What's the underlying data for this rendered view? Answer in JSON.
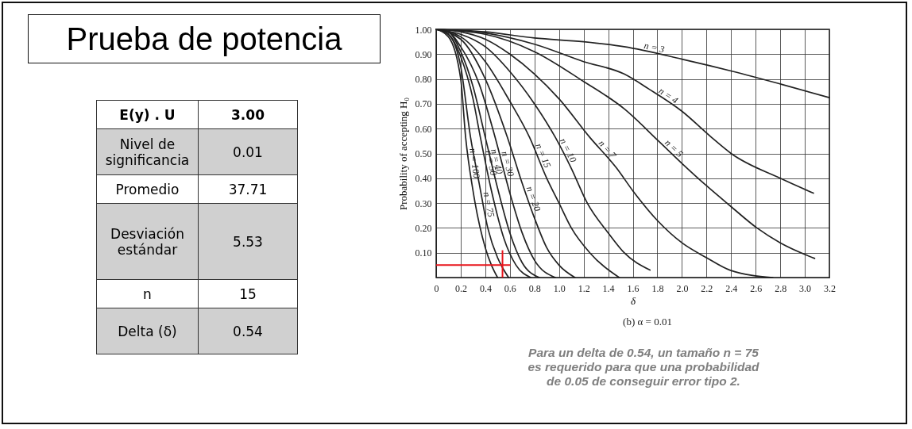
{
  "chart_data": [
    {
      "type": "other",
      "title": "Prueba de potencia",
      "categories": [
        "E(y) . U",
        "Nivel de significancia",
        "Promedio",
        "Desviación estándar",
        "n",
        "Delta (δ)"
      ],
      "value_labels": [
        "3.00",
        "0.01",
        "37.71",
        "5.53",
        "15",
        "0.54"
      ]
    },
    {
      "type": "line",
      "xlabel": "δ",
      "ylabel": "Probability of accepting H₀",
      "annotations": [
        "(b) α = 0.01",
        "Para un delta de 0.54, un tamaño n = 75 es requerido para que una probabilidad de 0.05 de conseguir error tipo 2."
      ],
      "xlim": [
        0,
        3.2
      ],
      "ylim": [
        0,
        1
      ],
      "xticks": [
        0,
        0.2,
        0.4,
        0.6,
        0.8,
        {
          "value": 1,
          "label": "1.0"
        },
        1.2,
        1.4,
        1.6,
        1.8,
        {
          "value": 2,
          "label": "2.0"
        },
        2.2,
        2.4,
        2.6,
        2.8,
        {
          "value": 3,
          "label": "3.0"
        },
        3.2
      ],
      "yticks": [
        {
          "value": 0.1,
          "label": "0.10"
        },
        {
          "value": 0.2,
          "label": "0.20"
        },
        {
          "value": 0.3,
          "label": "0.30"
        },
        {
          "value": 0.4,
          "label": "0.40"
        },
        {
          "value": 0.5,
          "label": "0.50"
        },
        {
          "value": 0.6,
          "label": "0.60"
        },
        {
          "value": 0.7,
          "label": "0.70"
        },
        {
          "value": 0.8,
          "label": "0.80"
        },
        {
          "value": 0.9,
          "label": "0.90"
        },
        {
          "value": 1,
          "label": "1.00"
        }
      ],
      "grid": true,
      "marker": "none",
      "line_style": "solid",
      "ref_lines": [
        {
          "axis": "y",
          "value": 0.05,
          "color": "#e8141b"
        },
        {
          "axis": "x",
          "value": 0.54,
          "color": "#e8141b"
        }
      ],
      "series": [
        {
          "name": "n = 3",
          "color": "#222222",
          "x": [
            0,
            0.4,
            0.8,
            1.2,
            1.53,
            2.0,
            2.42,
            2.8,
            3.2
          ],
          "values": [
            1,
            0.99,
            0.965,
            0.95,
            0.93,
            0.88,
            0.83,
            0.78,
            0.725
          ]
        },
        {
          "name": "n = 4",
          "color": "#222222",
          "x": [
            0,
            0.4,
            0.8,
            1.2,
            1.53,
            1.73,
            2.0,
            2.24,
            2.4,
            2.8,
            3.07
          ],
          "values": [
            1,
            0.985,
            0.94,
            0.87,
            0.82,
            0.76,
            0.67,
            0.565,
            0.5,
            0.4,
            0.34
          ]
        },
        {
          "name": "n = 5",
          "color": "#222222",
          "x": [
            0,
            0.4,
            0.8,
            1.2,
            1.53,
            1.81,
            2.0,
            2.2,
            2.39,
            2.61,
            2.8,
            3.08
          ],
          "values": [
            1,
            0.98,
            0.91,
            0.79,
            0.68,
            0.55,
            0.46,
            0.37,
            0.29,
            0.2,
            0.14,
            0.077
          ]
        },
        {
          "name": "n = 7",
          "color": "#222222",
          "x": [
            0,
            0.2,
            0.4,
            0.6,
            0.8,
            1.0,
            1.25,
            1.47,
            1.6,
            1.8,
            2.0,
            2.2,
            2.39,
            2.74
          ],
          "values": [
            1,
            0.99,
            0.96,
            0.9,
            0.82,
            0.72,
            0.565,
            0.44,
            0.35,
            0.23,
            0.14,
            0.08,
            0.03,
            0
          ]
        },
        {
          "name": "n = 10",
          "color": "#222222",
          "x": [
            0,
            0.2,
            0.4,
            0.6,
            0.8,
            0.97,
            1.1,
            1.23,
            1.4,
            1.53,
            1.74
          ],
          "values": [
            1,
            0.98,
            0.93,
            0.83,
            0.7,
            0.565,
            0.44,
            0.3,
            0.18,
            0.1,
            0.03
          ]
        },
        {
          "name": "n = 15",
          "color": "#222222",
          "x": [
            0,
            0.2,
            0.4,
            0.6,
            0.76,
            0.9,
            1.0,
            1.1,
            1.25,
            1.49
          ],
          "values": [
            1,
            0.97,
            0.87,
            0.71,
            0.565,
            0.4,
            0.3,
            0.2,
            0.1,
            0
          ]
        },
        {
          "name": "n = 20",
          "color": "#222222",
          "x": [
            0,
            0.2,
            0.4,
            0.58,
            0.7,
            0.8,
            0.9,
            1.0,
            1.13
          ],
          "values": [
            1,
            0.96,
            0.8,
            0.565,
            0.38,
            0.24,
            0.12,
            0.05,
            0
          ]
        },
        {
          "name": "n = 30",
          "color": "#222222",
          "x": [
            0,
            0.1,
            0.2,
            0.35,
            0.48,
            0.6,
            0.7,
            0.8,
            0.97
          ],
          "values": [
            1,
            0.99,
            0.93,
            0.78,
            0.565,
            0.34,
            0.18,
            0.07,
            0
          ]
        },
        {
          "name": "n = 40",
          "color": "#222222",
          "x": [
            0,
            0.1,
            0.2,
            0.3,
            0.4,
            0.5,
            0.6,
            0.7,
            0.84
          ],
          "values": [
            1,
            0.99,
            0.91,
            0.77,
            0.565,
            0.36,
            0.18,
            0.06,
            0
          ]
        },
        {
          "name": "n = 50",
          "color": "#222222",
          "x": [
            0,
            0.1,
            0.2,
            0.3,
            0.36,
            0.45,
            0.55,
            0.65,
            0.77
          ],
          "values": [
            1,
            0.98,
            0.89,
            0.72,
            0.565,
            0.35,
            0.16,
            0.05,
            0
          ]
        },
        {
          "name": "n = 75",
          "color": "#222222",
          "x": [
            0,
            0.1,
            0.2,
            0.28,
            0.35,
            0.42,
            0.5,
            0.54,
            0.59
          ],
          "values": [
            1,
            0.98,
            0.85,
            0.565,
            0.38,
            0.2,
            0.08,
            0.04,
            0
          ]
        },
        {
          "name": "n = 100",
          "color": "#222222",
          "x": [
            0,
            0.1,
            0.2,
            0.24,
            0.3,
            0.4,
            0.45,
            0.5
          ],
          "values": [
            1,
            0.97,
            0.8,
            0.565,
            0.35,
            0.12,
            0.05,
            0
          ]
        }
      ]
    }
  ]
}
